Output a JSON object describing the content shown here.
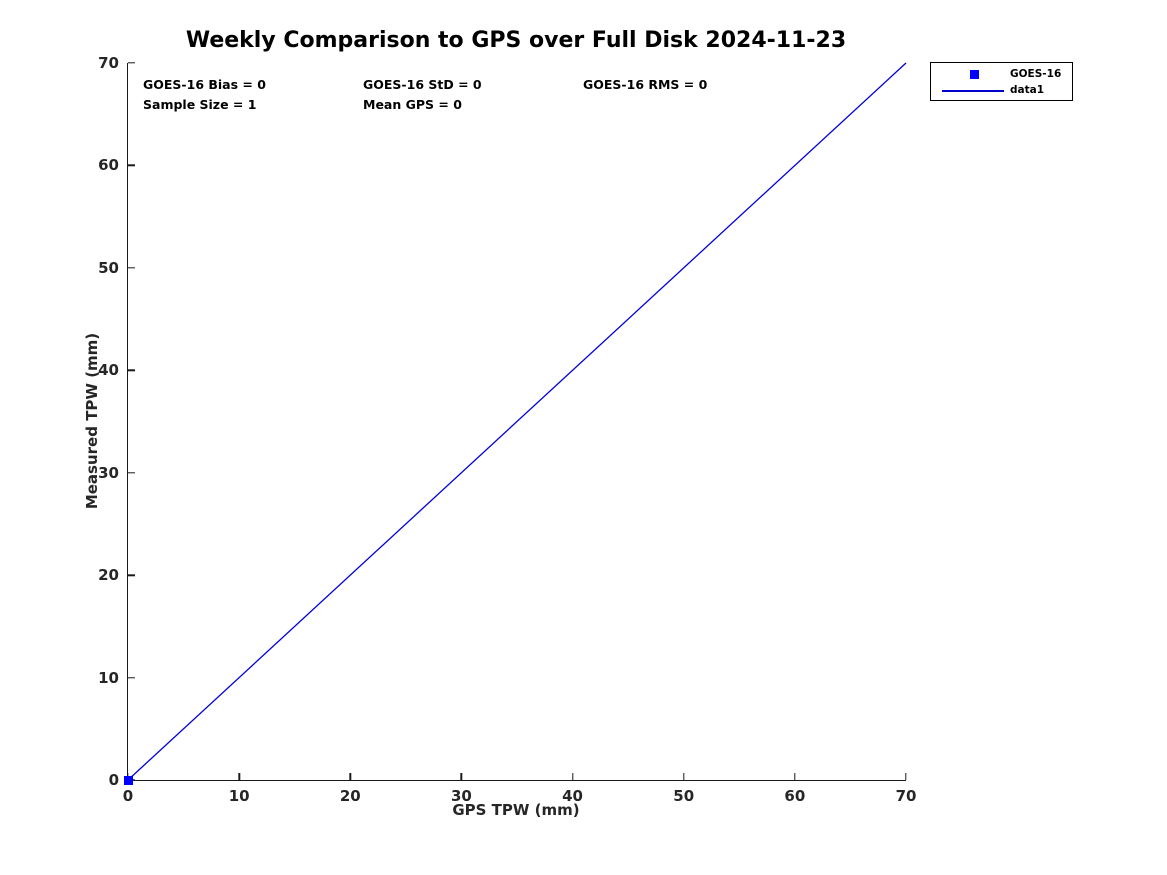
{
  "annotations": {
    "bias": "GOES-16 Bias = 0",
    "std": "GOES-16 StD = 0",
    "rms": "GOES-16 RMS = 0",
    "sample_size": "Sample Size = 1",
    "mean_gps": "Mean GPS = 0"
  },
  "legend": {
    "position": "outside-top-right",
    "entries": [
      {
        "label": "GOES-16",
        "icon": "square-marker-icon",
        "color": "#0000ff"
      },
      {
        "label": "data1",
        "icon": "line-sample-icon",
        "color": "#0000cc"
      }
    ]
  },
  "colors": {
    "marker_blue": "#0000ff",
    "line_blue": "#0000dd",
    "axis": "#1a1a1a",
    "background": "#ffffff"
  },
  "chart_data": {
    "type": "scatter",
    "title": "Weekly Comparison to GPS over Full Disk 2024-11-23",
    "xlabel": "GPS TPW (mm)",
    "ylabel": "Measured TPW (mm)",
    "xlim": [
      0,
      70
    ],
    "ylim": [
      0,
      70
    ],
    "xticks": [
      0,
      10,
      20,
      30,
      40,
      50,
      60,
      70
    ],
    "yticks": [
      0,
      10,
      20,
      30,
      40,
      50,
      60,
      70
    ],
    "grid": false,
    "legend_position": "outside-top-right",
    "series": [
      {
        "name": "GOES-16",
        "kind": "scatter",
        "marker": "square",
        "color": "#0000ff",
        "points": [
          [
            0,
            0
          ]
        ]
      },
      {
        "name": "data1",
        "kind": "line",
        "color": "#0000dd",
        "points": [
          [
            0,
            0
          ],
          [
            70,
            70
          ]
        ]
      }
    ],
    "stats": {
      "bias": 0,
      "std": 0,
      "rms": 0,
      "sample_size": 1,
      "mean_gps": 0
    }
  }
}
